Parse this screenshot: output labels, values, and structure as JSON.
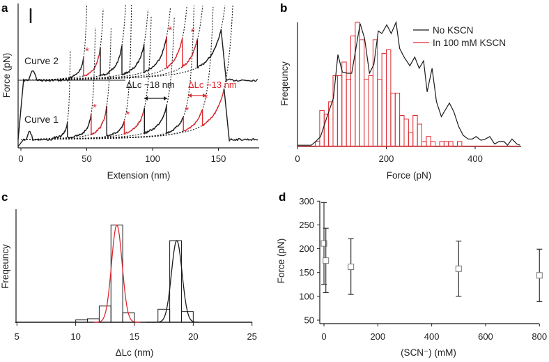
{
  "colors": {
    "black": "#1a1a1a",
    "red": "#e0282e"
  },
  "panel_labels": [
    "a",
    "b",
    "c",
    "d"
  ],
  "chart_data": [
    {
      "panel": "a",
      "type": "line",
      "title": "",
      "xlabel": "Extension (nm)",
      "ylabel": "Force (pN)",
      "xlim": [
        0,
        180
      ],
      "xticks": [
        "0",
        "50",
        "100",
        "150"
      ],
      "xtick_values": [
        0,
        50,
        100,
        150
      ],
      "force_units": "relative (max peak = 100)",
      "annotations": {
        "curve2_label": "Curve 2",
        "curve1_label": "Curve 1",
        "dlc_black": "ΔLc ~18 nm",
        "dlc_red": "ΔLc ~13 nm",
        "asterisk": "*"
      },
      "curves": [
        {
          "name": "Curve 2",
          "peaks_ext_nm": [
            47.6,
            60.3,
            76.7,
            93.5,
            110.7,
            122.6,
            134,
            152
          ],
          "peaks_force": [
            45,
            64,
            68,
            71,
            86,
            82,
            79,
            100
          ],
          "red_segments_after_peak": [
            0,
            4,
            5
          ],
          "starred_peaks": [
            0,
            4,
            5
          ]
        },
        {
          "name": "Curve 1",
          "peaks_ext_nm": [
            35.3,
            53.4,
            65.2,
            78.5,
            93.8,
            110.6,
            123.4,
            137.9,
            154.3
          ],
          "peaks_force": [
            34,
            51,
            66,
            37,
            62,
            66,
            45,
            59,
            100
          ],
          "red_segments_after_peak": [
            1,
            3,
            6,
            7
          ],
          "starred_peaks": [
            1,
            3,
            6,
            7
          ]
        }
      ]
    },
    {
      "panel": "b",
      "type": "bar",
      "xlabel": "Force (pN)",
      "ylabel": "Freqeuncy",
      "xlim": [
        0,
        503
      ],
      "xticks": [
        "0",
        "200",
        "400"
      ],
      "xtick_values": [
        0,
        200,
        400
      ],
      "legend": [
        "No KSCN",
        "In 100 mM KSCN"
      ],
      "legend_position": "top-right",
      "series": [
        {
          "name": "In 100 mM KSCN",
          "kind": "histogram",
          "bin_width": 10,
          "bin_starts": [
            40,
            50,
            60,
            70,
            80,
            90,
            100,
            110,
            120,
            130,
            140,
            150,
            160,
            170,
            180,
            190,
            200,
            210,
            220,
            230,
            240,
            250,
            260,
            270,
            280,
            290,
            300,
            310,
            320,
            330,
            340,
            350,
            360
          ],
          "values": [
            4,
            29,
            26,
            36,
            57,
            57,
            68,
            54,
            89,
            100,
            86,
            54,
            57,
            86,
            54,
            75,
            78,
            43,
            43,
            25,
            22,
            11,
            25,
            18,
            4,
            8,
            4,
            0,
            4,
            4,
            4,
            0,
            4
          ]
        },
        {
          "name": "No KSCN",
          "kind": "line",
          "x": [
            0,
            31,
            41,
            52,
            62,
            81,
            91,
            101,
            112,
            122,
            141,
            151,
            162,
            172,
            182,
            190,
            201,
            211,
            222,
            230,
            240,
            253,
            264,
            274,
            284,
            292,
            303,
            313,
            324,
            342,
            352,
            363,
            373,
            384,
            394,
            402,
            413,
            423,
            433,
            444,
            454,
            465,
            473,
            483,
            494,
            501
          ],
          "y": [
            1,
            1,
            4,
            8,
            19,
            39,
            74,
            60,
            59,
            59,
            99,
            87,
            59,
            66,
            93,
            91,
            98,
            91,
            100,
            79,
            72,
            65,
            72,
            63,
            69,
            44,
            63,
            36,
            24,
            35,
            28,
            16,
            9,
            6,
            6,
            8,
            5,
            6,
            8,
            2,
            4,
            4,
            1,
            6,
            2,
            1
          ]
        }
      ]
    },
    {
      "panel": "c",
      "type": "bar",
      "xlabel": "ΔLc (nm)",
      "ylabel": "Freqeuncy",
      "xlim": [
        5,
        25
      ],
      "xticks": [
        "5",
        "10",
        "15",
        "20",
        "25"
      ],
      "xtick_values": [
        5,
        10,
        15,
        20,
        25
      ],
      "histogram": {
        "bin_width": 1,
        "bin_starts": [
          10,
          11,
          12,
          13,
          14,
          17,
          18,
          19
        ],
        "values": [
          2.4,
          3.6,
          16.7,
          100,
          9.6,
          13.4,
          84,
          11
        ]
      },
      "fits": [
        {
          "name": "red fit",
          "center": 13.5,
          "sigma": 0.45,
          "amplitude": 100,
          "range": [
            11.5,
            15.5
          ],
          "color": "red"
        },
        {
          "name": "black fit",
          "center": 18.6,
          "sigma": 0.45,
          "amplitude": 84,
          "range": [
            16,
            20.5
          ],
          "color": "black"
        }
      ]
    },
    {
      "panel": "d",
      "type": "scatter",
      "xlabel": "(SCN⁻) (mM)",
      "ylabel": "Force (pN)",
      "xlim": [
        0,
        800
      ],
      "ylim": [
        50,
        300
      ],
      "xticks": [
        "0",
        "200",
        "400",
        "600",
        "800"
      ],
      "xtick_values": [
        0,
        200,
        400,
        600,
        800
      ],
      "yticks": [
        "50",
        "100",
        "150",
        "200",
        "250",
        "300"
      ],
      "ytick_values": [
        50,
        100,
        150,
        200,
        250,
        300
      ],
      "points": [
        {
          "x": 0,
          "y": 211,
          "lo": 125,
          "hi": 297
        },
        {
          "x": 7,
          "y": 175,
          "lo": 108,
          "hi": 243
        },
        {
          "x": 100,
          "y": 162,
          "lo": 104,
          "hi": 221
        },
        {
          "x": 500,
          "y": 158,
          "lo": 100,
          "hi": 216
        },
        {
          "x": 800,
          "y": 144,
          "lo": 89,
          "hi": 199
        }
      ]
    }
  ]
}
